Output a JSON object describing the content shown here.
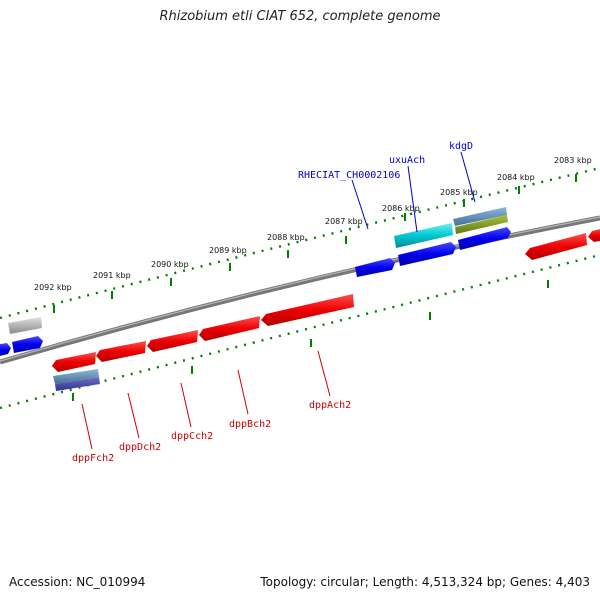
{
  "title": "Rhizobium etli CIAT 652, complete genome",
  "footer": {
    "accession": "Accession: NC_010994",
    "summary": "Topology: circular; Length: 4,513,324 bp; Genes: 4,403"
  },
  "scale_ticks": [
    "2083 kbp",
    "2084 kbp",
    "2085 kbp",
    "2086 kbp",
    "2087 kbp",
    "2088 kbp",
    "2089 kbp",
    "2090 kbp",
    "2091 kbp",
    "2092 kbp"
  ],
  "genes_top": [
    "kdgD",
    "uxuAch",
    "RHECIAT_CH0002106"
  ],
  "genes_bottom": [
    "dppAch2",
    "dppBch2",
    "dppCch2",
    "dppDch2",
    "dppFch2"
  ],
  "colors": {
    "forward_strand": "#0000ee",
    "reverse_strand": "#ee0000",
    "tick": "#008000",
    "backbone": "#777777",
    "label_top": "#0000cc",
    "label_bottom": "#cc0000"
  }
}
